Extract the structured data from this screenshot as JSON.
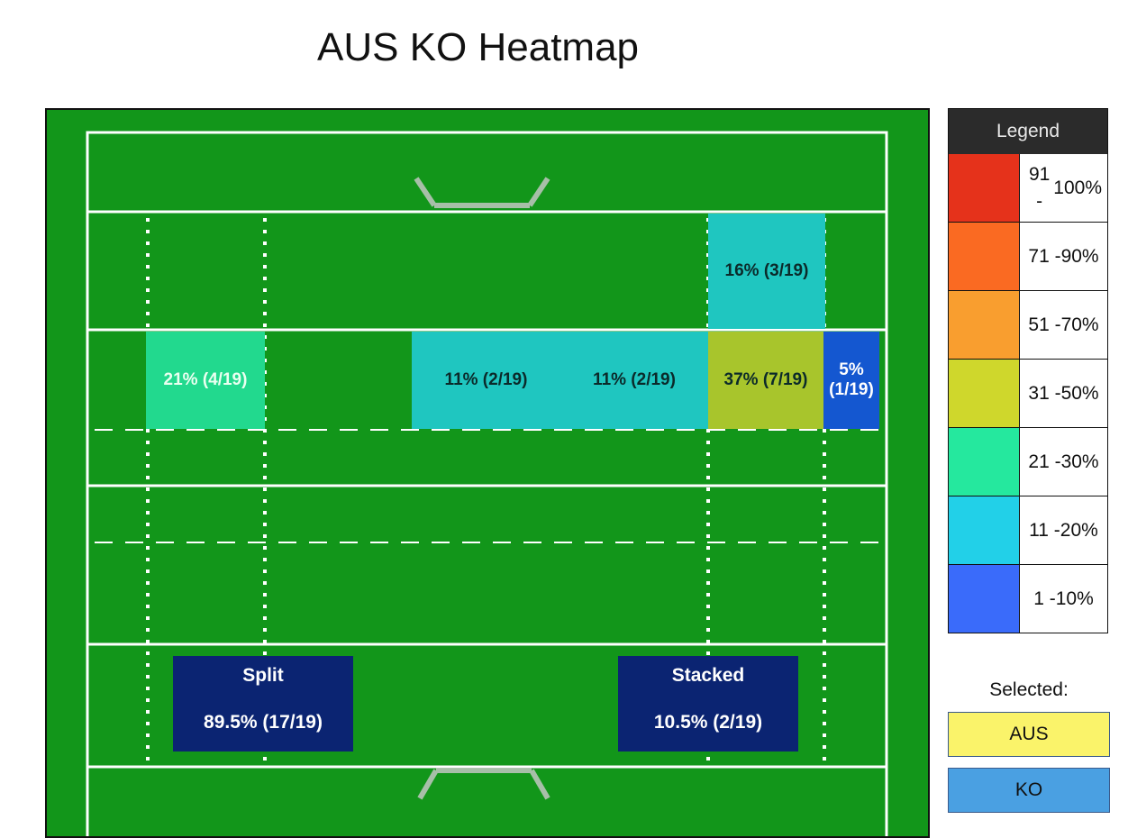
{
  "title": "AUS KO Heatmap",
  "chart_data": {
    "type": "heatmap",
    "title": "AUS KO Heatmap",
    "zones": [
      {
        "label": "16% (3/19)",
        "percent": 16,
        "count": 3,
        "total": 19,
        "bin": "11 - 20%"
      },
      {
        "label": "21% (4/19)",
        "percent": 21,
        "count": 4,
        "total": 19,
        "bin": "21 - 30%"
      },
      {
        "label": "11% (2/19)",
        "percent": 11,
        "count": 2,
        "total": 19,
        "bin": "11 - 20%"
      },
      {
        "label": "11% (2/19)",
        "percent": 11,
        "count": 2,
        "total": 19,
        "bin": "11 - 20%"
      },
      {
        "label": "37% (7/19)",
        "percent": 37,
        "count": 7,
        "total": 19,
        "bin": "31 - 50%"
      },
      {
        "label_line1": "5%",
        "label_line2": "(1/19)",
        "percent": 5,
        "count": 1,
        "total": 19,
        "bin": "1 - 10%"
      }
    ],
    "formations": [
      {
        "name": "Split",
        "value": "89.5% (17/19)",
        "percent": 89.5,
        "count": 17,
        "total": 19
      },
      {
        "name": "Stacked",
        "value": "10.5% (2/19)",
        "percent": 10.5,
        "count": 2,
        "total": 19
      }
    ]
  },
  "legend": {
    "header": "Legend",
    "bins": [
      {
        "line1": "91 -",
        "line2": "100%",
        "color": "#e5321b"
      },
      {
        "line1": "71 -",
        "line2": "90%",
        "color": "#fa6a22"
      },
      {
        "line1": "51 -",
        "line2": "70%",
        "color": "#f99e2f"
      },
      {
        "line1": "31 -",
        "line2": "50%",
        "color": "#cfd72c"
      },
      {
        "line1": "21 -",
        "line2": "30%",
        "color": "#25e89e"
      },
      {
        "line1": "11 -",
        "line2": "20%",
        "color": "#22d0e8"
      },
      {
        "line1": "1 -",
        "line2": "10%",
        "color": "#3a6bfa"
      }
    ]
  },
  "selected": {
    "label": "Selected:",
    "team_a": "AUS",
    "team_b": "KO",
    "team_a_color": "#faf36a",
    "team_b_color": "#4aa0e2"
  },
  "colors": {
    "field": "#12961a",
    "zone_16": "#1fc6c0",
    "zone_21": "#22d98e",
    "zone_11": "#1fc6c0",
    "zone_37": "#a8c52c",
    "zone_5": "#1457d0",
    "formation": "#0b2472"
  }
}
